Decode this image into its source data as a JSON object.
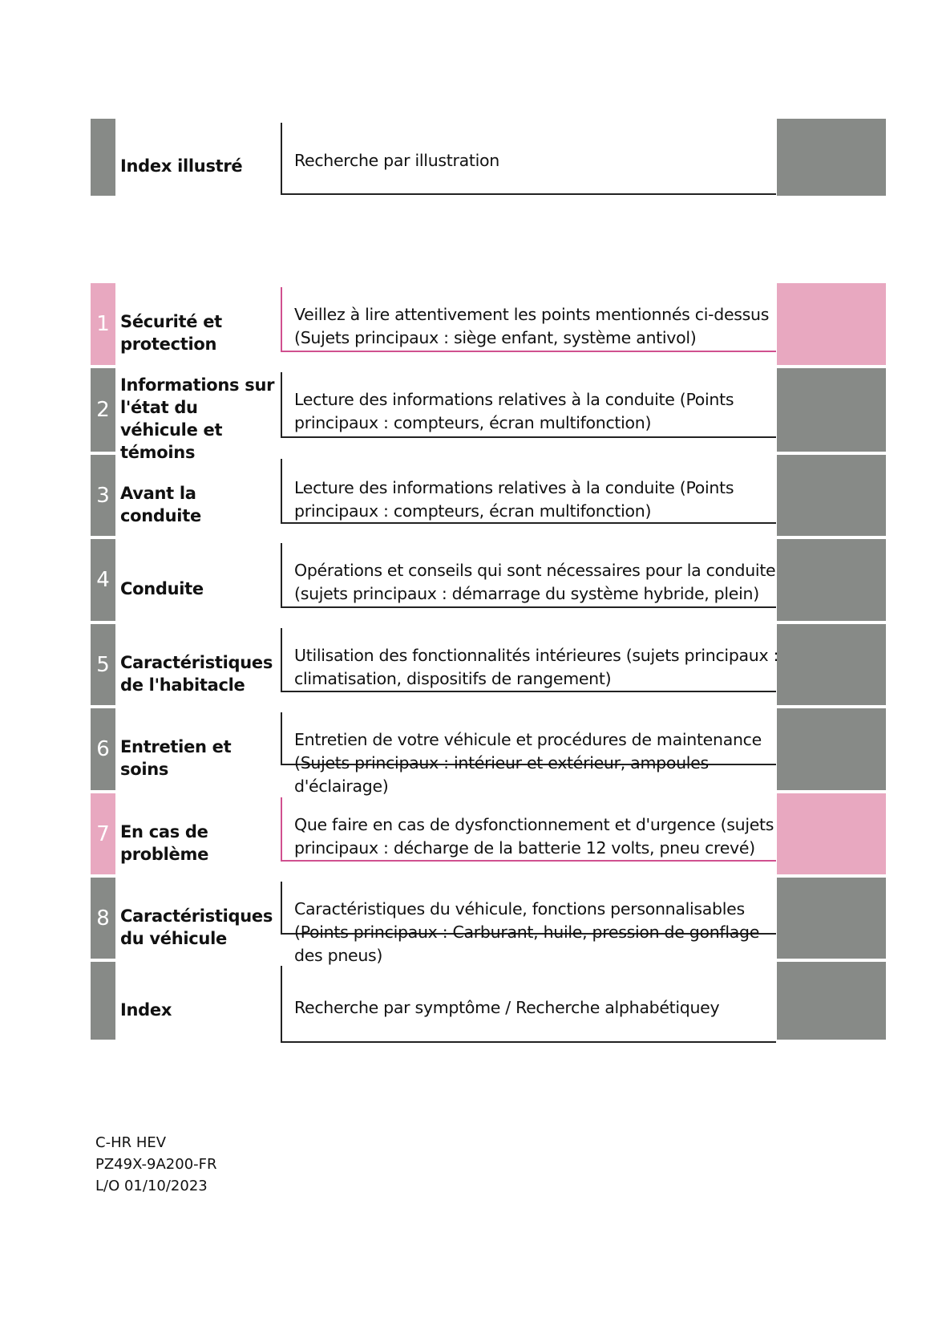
{
  "colors": {
    "gray": "#878a87",
    "pink": "#e8a8c0",
    "pink_line": "#d0508f",
    "dark_line": "#222222"
  },
  "sections": [
    {
      "number": "",
      "title": "Index illustré",
      "description": "Recherche par illustration",
      "accent": "gray"
    },
    {
      "number": "1",
      "title": "Sécurité et protection",
      "description": "Veillez à lire attentivement les points mentionnés ci-dessus (Sujets principaux : siège enfant, système antivol)",
      "accent": "pink"
    },
    {
      "number": "2",
      "title": "Informations sur l'état du véhicule et témoins",
      "description": "Lecture des informations relatives à la conduite (Points principaux : compteurs, écran multifonction)",
      "accent": "gray"
    },
    {
      "number": "3",
      "title": "Avant la conduite",
      "description": "Lecture des informations relatives à la conduite (Points principaux : compteurs, écran multifonction)",
      "accent": "gray"
    },
    {
      "number": "4",
      "title": "Conduite",
      "description": "Opérations et conseils qui sont nécessaires pour la conduite (sujets principaux : démarrage du système hybride, plein)",
      "accent": "gray"
    },
    {
      "number": "5",
      "title": "Caractéristiques de l'habitacle",
      "description": "Utilisation des fonctionnalités intérieures (sujets principaux : climatisation, dispositifs de rangement)",
      "accent": "gray"
    },
    {
      "number": "6",
      "title": "Entretien et soins",
      "description": "Entretien de votre véhicule et procédures de maintenance (Sujets principaux : intérieur et extérieur, ampoules d'éclairage)",
      "accent": "gray"
    },
    {
      "number": "7",
      "title": "En cas de problème",
      "description": "Que faire en cas de dysfonctionnement et d'urgence (sujets principaux : décharge de la batterie 12 volts, pneu crevé)",
      "accent": "pink"
    },
    {
      "number": "8",
      "title": "Caractéristiques du véhicule",
      "description": "Caractéristiques du véhicule, fonctions personnalisables (Points principaux : Carburant, huile, pression de gonflage des pneus)",
      "accent": "gray"
    },
    {
      "number": "",
      "title": "Index",
      "description": "Recherche par symptôme / Recherche alphabétiquey",
      "accent": "gray"
    }
  ],
  "footer": {
    "model": "C-HR HEV",
    "code": "PZ49X-9A200-FR",
    "date": "L/O 01/10/2023"
  }
}
